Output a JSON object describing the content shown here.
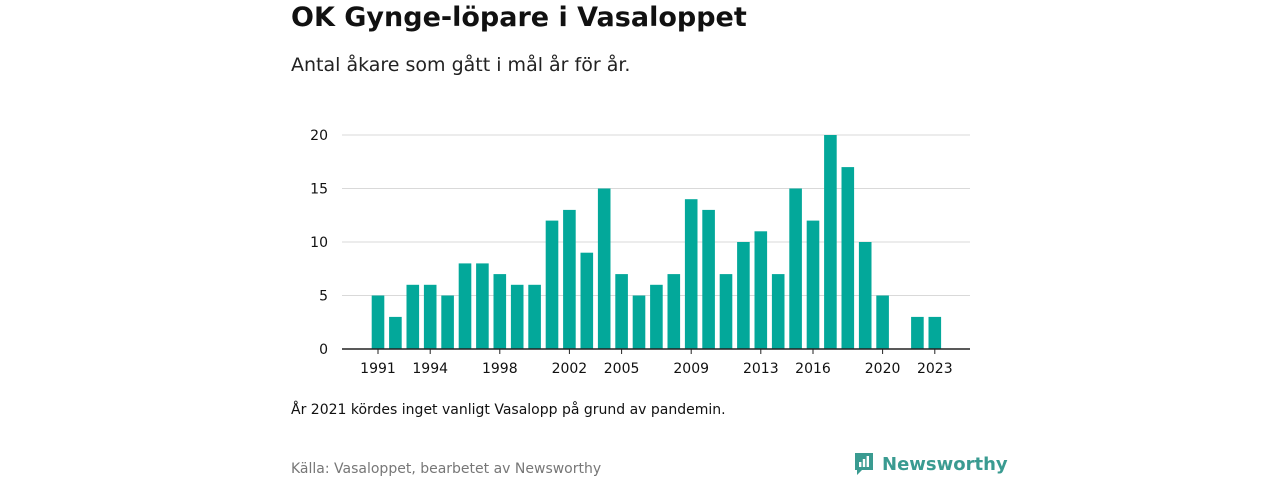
{
  "header": {
    "title": "OK Gynge-löpare i Vasaloppet",
    "subtitle": "Antal åkare som gått i mål år för år."
  },
  "footer": {
    "note": "År 2021 kördes inget vanligt Vasalopp på grund av pandemin.",
    "source": "Källa: Vasaloppet, bearbetet av Newsworthy",
    "brand": "Newsworthy"
  },
  "colors": {
    "bar": "#03a89a",
    "grid": "#d9d9d9",
    "axis": "#222222",
    "brand": "#3a9b91"
  },
  "chart_data": {
    "type": "bar",
    "title": "OK Gynge-löpare i Vasaloppet",
    "subtitle": "Antal åkare som gått i mål år för år.",
    "categories": [
      1991,
      1992,
      1993,
      1994,
      1995,
      1996,
      1997,
      1998,
      1999,
      2000,
      2001,
      2002,
      2003,
      2004,
      2005,
      2006,
      2007,
      2008,
      2009,
      2010,
      2011,
      2012,
      2013,
      2014,
      2015,
      2016,
      2017,
      2018,
      2019,
      2020,
      2021,
      2022,
      2023
    ],
    "values": [
      5,
      3,
      6,
      6,
      5,
      8,
      8,
      7,
      6,
      6,
      12,
      13,
      9,
      15,
      7,
      5,
      6,
      7,
      14,
      13,
      7,
      10,
      11,
      7,
      15,
      12,
      20,
      17,
      10,
      5,
      null,
      3,
      3
    ],
    "x_tick_labels": [
      "1991",
      "1994",
      "1998",
      "2002",
      "2005",
      "2009",
      "2013",
      "2016",
      "2020",
      "2023"
    ],
    "y_ticks": [
      0,
      5,
      10,
      15,
      20
    ],
    "ylim": [
      0,
      20
    ],
    "xlabel": "",
    "ylabel": "",
    "grid": true
  }
}
